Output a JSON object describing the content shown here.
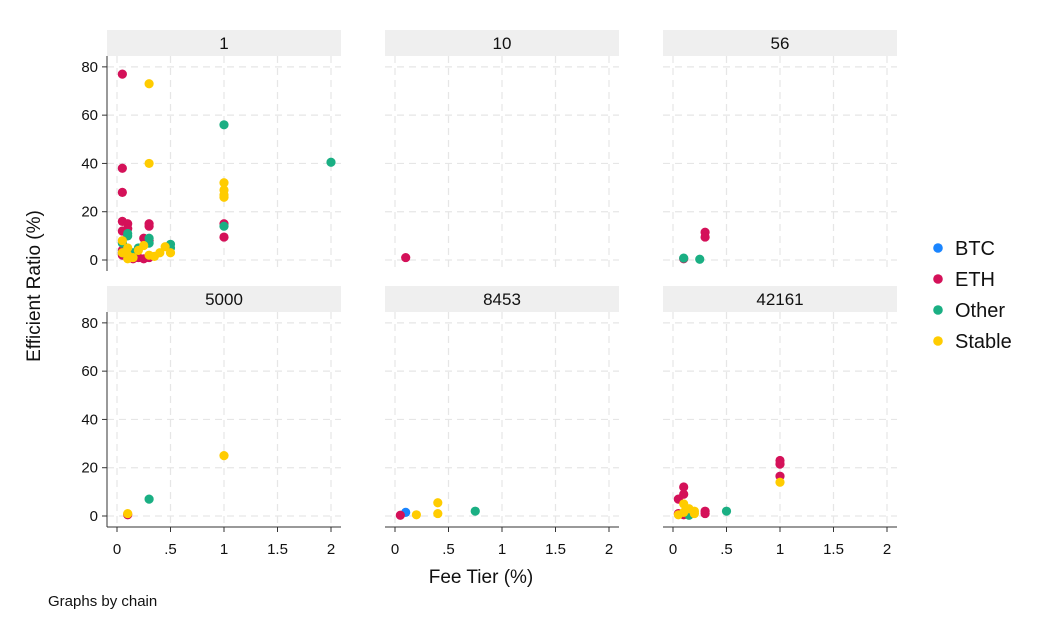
{
  "chart_data": {
    "type": "scatter",
    "xlabel": "Fee Tier (%)",
    "ylabel": "Efficient Ratio (%)",
    "xlim": [
      0,
      2
    ],
    "ylim": [
      0,
      80
    ],
    "xticks": [
      0,
      0.5,
      1,
      1.5,
      2
    ],
    "xtick_labels": [
      "0",
      ".5",
      "1",
      "1.5",
      "2"
    ],
    "yticks": [
      0,
      20,
      40,
      60,
      80
    ],
    "ytick_labels": [
      "0",
      "20",
      "40",
      "60",
      "80"
    ],
    "grid": true,
    "legend_position": "right",
    "note": "Graphs by chain",
    "series": [
      {
        "name": "BTC",
        "color": "#1a85ff"
      },
      {
        "name": "ETH",
        "color": "#d41159"
      },
      {
        "name": "Other",
        "color": "#1aaf83"
      },
      {
        "name": "Stable",
        "color": "#ffcc00"
      }
    ],
    "panels": [
      {
        "label": "1",
        "points": {
          "BTC": [],
          "ETH": [
            [
              0.05,
              77
            ],
            [
              0.05,
              38
            ],
            [
              0.05,
              28
            ],
            [
              0.05,
              16
            ],
            [
              0.05,
              12
            ],
            [
              0.1,
              15
            ],
            [
              0.1,
              13
            ],
            [
              0.3,
              15
            ],
            [
              0.3,
              14
            ],
            [
              0.25,
              9
            ],
            [
              0.3,
              8
            ],
            [
              0.05,
              2
            ],
            [
              0.1,
              1
            ],
            [
              0.15,
              0.5
            ],
            [
              0.2,
              1
            ],
            [
              0.25,
              0.5
            ],
            [
              0.3,
              1
            ],
            [
              0.05,
              4
            ],
            [
              1,
              15
            ],
            [
              1,
              9.5
            ]
          ],
          "Other": [
            [
              0.05,
              7
            ],
            [
              0.1,
              10
            ],
            [
              0.1,
              11
            ],
            [
              0.05,
              3
            ],
            [
              0.3,
              9
            ],
            [
              0.3,
              7
            ],
            [
              0.5,
              6.5
            ],
            [
              0.5,
              5
            ],
            [
              1,
              56
            ],
            [
              1,
              14
            ],
            [
              2,
              40.5
            ],
            [
              0.2,
              5
            ],
            [
              0.15,
              3
            ]
          ],
          "Stable": [
            [
              0.3,
              73
            ],
            [
              0.3,
              40
            ],
            [
              1,
              32
            ],
            [
              1,
              29
            ],
            [
              1,
              27
            ],
            [
              1,
              26
            ],
            [
              0.05,
              8
            ],
            [
              0.1,
              5
            ],
            [
              0.05,
              3
            ],
            [
              0.1,
              2
            ],
            [
              0.2,
              4
            ],
            [
              0.25,
              6
            ],
            [
              0.4,
              3
            ],
            [
              0.45,
              5.5
            ],
            [
              0.5,
              3
            ],
            [
              0.3,
              2
            ],
            [
              0.35,
              1.5
            ],
            [
              0.15,
              1
            ],
            [
              0.1,
              0.5
            ]
          ]
        }
      },
      {
        "label": "10",
        "points": {
          "BTC": [],
          "ETH": [
            [
              0.1,
              1
            ]
          ],
          "Other": [],
          "Stable": []
        }
      },
      {
        "label": "56",
        "points": {
          "BTC": [],
          "ETH": [
            [
              0.3,
              11.5
            ],
            [
              0.3,
              9.5
            ],
            [
              0.1,
              0.5
            ]
          ],
          "Other": [
            [
              0.1,
              0.8
            ],
            [
              0.25,
              0.3
            ]
          ],
          "Stable": []
        }
      },
      {
        "label": "5000",
        "points": {
          "BTC": [],
          "ETH": [
            [
              0.1,
              0.5
            ]
          ],
          "Other": [
            [
              0.3,
              7
            ]
          ],
          "Stable": [
            [
              0.1,
              1
            ],
            [
              1,
              25
            ]
          ]
        }
      },
      {
        "label": "8453",
        "points": {
          "BTC": [
            [
              0.1,
              1.5
            ]
          ],
          "ETH": [
            [
              0.05,
              0.3
            ]
          ],
          "Other": [
            [
              0.75,
              2
            ]
          ],
          "Stable": [
            [
              0.2,
              0.5
            ],
            [
              0.4,
              5.5
            ],
            [
              0.4,
              1
            ]
          ]
        }
      },
      {
        "label": "42161",
        "points": {
          "BTC": [],
          "ETH": [
            [
              0.05,
              7
            ],
            [
              0.1,
              12
            ],
            [
              0.1,
              9
            ],
            [
              0.05,
              1
            ],
            [
              0.1,
              0.5
            ],
            [
              0.3,
              2
            ],
            [
              0.3,
              1
            ],
            [
              1,
              23
            ],
            [
              1,
              21.5
            ],
            [
              1,
              16.5
            ]
          ],
          "Other": [
            [
              0.5,
              2
            ],
            [
              0.15,
              0.3
            ]
          ],
          "Stable": [
            [
              0.1,
              5
            ],
            [
              0.15,
              3
            ],
            [
              0.2,
              2
            ],
            [
              0.1,
              1.5
            ],
            [
              0.2,
              1
            ],
            [
              0.05,
              0.5
            ],
            [
              1,
              14
            ]
          ]
        }
      }
    ]
  }
}
